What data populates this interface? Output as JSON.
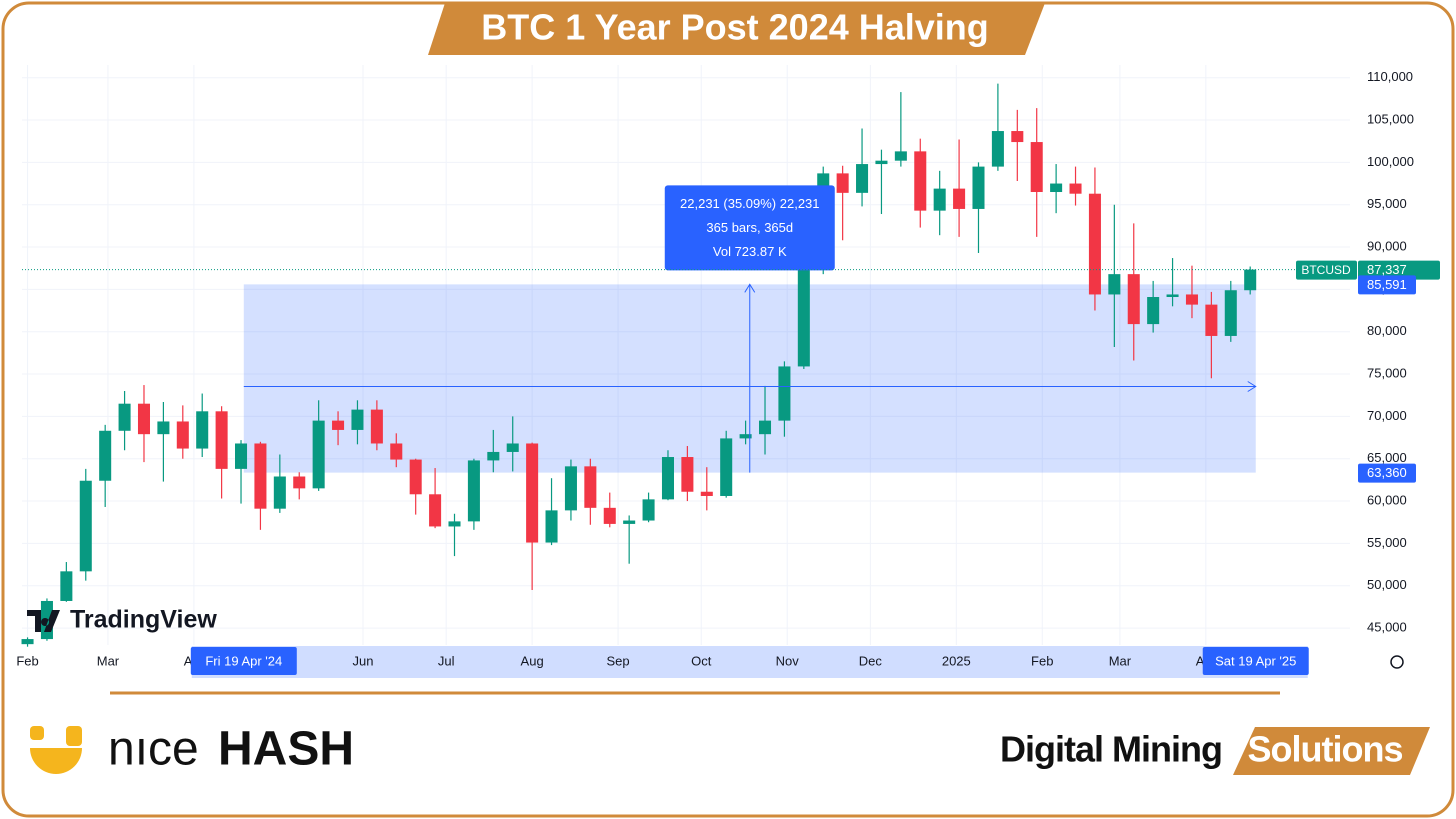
{
  "header": {
    "title": "BTC 1 Year Post 2024 Halving"
  },
  "chart_data": {
    "type": "candlestick",
    "x": [
      "2024-02-01",
      "2024-02-08",
      "2024-02-15",
      "2024-02-22",
      "2024-02-29",
      "2024-03-07",
      "2024-03-14",
      "2024-03-21",
      "2024-03-28",
      "2024-04-04",
      "2024-04-11",
      "2024-04-18",
      "2024-04-25",
      "2024-05-02",
      "2024-05-09",
      "2024-05-16",
      "2024-05-23",
      "2024-05-30",
      "2024-06-06",
      "2024-06-13",
      "2024-06-20",
      "2024-06-27",
      "2024-07-04",
      "2024-07-11",
      "2024-07-18",
      "2024-07-25",
      "2024-08-01",
      "2024-08-08",
      "2024-08-15",
      "2024-08-22",
      "2024-08-29",
      "2024-09-05",
      "2024-09-12",
      "2024-09-19",
      "2024-09-26",
      "2024-10-03",
      "2024-10-10",
      "2024-10-17",
      "2024-10-24",
      "2024-10-31",
      "2024-11-07",
      "2024-11-14",
      "2024-11-21",
      "2024-11-28",
      "2024-12-05",
      "2024-12-12",
      "2024-12-19",
      "2024-12-26",
      "2025-01-02",
      "2025-01-09",
      "2025-01-16",
      "2025-01-23",
      "2025-01-30",
      "2025-02-06",
      "2025-02-13",
      "2025-02-20",
      "2025-02-27",
      "2025-03-06",
      "2025-03-13",
      "2025-03-20",
      "2025-03-27",
      "2025-04-03",
      "2025-04-10",
      "2025-04-17"
    ],
    "open": [
      43100,
      43700,
      48200,
      51700,
      62400,
      68300,
      71500,
      67900,
      69400,
      66200,
      70600,
      63800,
      66800,
      59100,
      62900,
      61500,
      69500,
      68400,
      70800,
      66800,
      64900,
      60800,
      57000,
      57600,
      64800,
      65800,
      66800,
      55100,
      58900,
      64100,
      59200,
      57300,
      57700,
      60200,
      65200,
      61100,
      60600,
      67400,
      67900,
      69500,
      75900,
      87300,
      98700,
      96400,
      99800,
      100200,
      101300,
      94300,
      96900,
      94500,
      99500,
      103700,
      102400,
      96500,
      97500,
      96300,
      84400,
      86800,
      80900,
      84100,
      84400,
      83200,
      79500,
      84900
    ],
    "high": [
      43900,
      48500,
      52800,
      63800,
      69000,
      73000,
      73700,
      71700,
      71300,
      72700,
      71200,
      67200,
      67000,
      65500,
      63400,
      71900,
      70600,
      71900,
      71900,
      68000,
      65000,
      63900,
      58500,
      65000,
      68400,
      70000,
      66900,
      62700,
      64900,
      65000,
      61000,
      58300,
      61000,
      66000,
      66500,
      64000,
      68300,
      69500,
      73600,
      76500,
      89500,
      99500,
      99600,
      104000,
      101500,
      108300,
      102800,
      99000,
      102700,
      100000,
      109300,
      106200,
      106400,
      99800,
      99500,
      99400,
      95000,
      92800,
      86000,
      88700,
      87800,
      84700,
      86000,
      87700
    ],
    "low": [
      42800,
      43500,
      48100,
      50600,
      59300,
      66000,
      64600,
      62300,
      65000,
      65200,
      60300,
      59700,
      56600,
      58600,
      60200,
      61200,
      66600,
      66700,
      66000,
      64000,
      58400,
      56800,
      53500,
      56600,
      63400,
      63500,
      49500,
      54800,
      57700,
      57200,
      56900,
      52600,
      57500,
      60100,
      60000,
      58900,
      60400,
      66700,
      65500,
      67600,
      75600,
      86800,
      90800,
      94800,
      93900,
      99500,
      92300,
      91400,
      91200,
      89300,
      99000,
      97800,
      91200,
      94000,
      94900,
      82500,
      78200,
      76600,
      79900,
      83000,
      81600,
      74500,
      78800,
      84400
    ],
    "close": [
      43700,
      48200,
      51700,
      62400,
      68300,
      71500,
      67900,
      69400,
      66200,
      70600,
      63800,
      66800,
      59100,
      62900,
      61500,
      69500,
      68400,
      70800,
      66800,
      64900,
      60800,
      57000,
      57600,
      64800,
      65800,
      66800,
      55100,
      58900,
      64100,
      59200,
      57300,
      57700,
      60200,
      65200,
      61100,
      60600,
      67400,
      67900,
      69500,
      75900,
      87300,
      98700,
      96400,
      99800,
      100200,
      101300,
      94300,
      96900,
      94500,
      99500,
      103700,
      102400,
      96500,
      97500,
      96300,
      84400,
      86800,
      80900,
      84100,
      84400,
      83200,
      79500,
      84900,
      87337
    ],
    "up_color": "#089981",
    "down_color": "#f23645",
    "xlim": [
      "2024-01-30",
      "2025-05-23"
    ],
    "xticks": [
      {
        "value": "2024-02-01",
        "label": "Feb"
      },
      {
        "value": "2024-03-01",
        "label": "Mar"
      },
      {
        "value": "2024-04-01",
        "label": "Apr"
      },
      {
        "value": "2024-06-01",
        "label": "Jun"
      },
      {
        "value": "2024-07-01",
        "label": "Jul"
      },
      {
        "value": "2024-08-01",
        "label": "Aug"
      },
      {
        "value": "2024-09-01",
        "label": "Sep"
      },
      {
        "value": "2024-10-01",
        "label": "Oct"
      },
      {
        "value": "2024-11-01",
        "label": "Nov"
      },
      {
        "value": "2024-12-01",
        "label": "Dec"
      },
      {
        "value": "2025-01-01",
        "label": "2025"
      },
      {
        "value": "2025-02-01",
        "label": "Feb"
      },
      {
        "value": "2025-03-01",
        "label": "Mar"
      },
      {
        "value": "2025-04-01",
        "label": "Apr"
      }
    ],
    "ylim": [
      43000,
      111500
    ],
    "yticks": [
      {
        "value": 45000,
        "label": "45,000"
      },
      {
        "value": 50000,
        "label": "50,000"
      },
      {
        "value": 55000,
        "label": "55,000"
      },
      {
        "value": 60000,
        "label": "60,000"
      },
      {
        "value": 65000,
        "label": "65,000"
      },
      {
        "value": 70000,
        "label": "70,000"
      },
      {
        "value": 75000,
        "label": "75,000"
      },
      {
        "value": 80000,
        "label": "80,000"
      },
      {
        "value": 85000,
        "label": "85,000"
      },
      {
        "value": 90000,
        "label": "90,000"
      },
      {
        "value": 95000,
        "label": "95,000"
      },
      {
        "value": 100000,
        "label": "100,000"
      },
      {
        "value": 105000,
        "label": "105,000"
      },
      {
        "value": 110000,
        "label": "110,000"
      }
    ],
    "grid": true,
    "last_price": {
      "symbol": "BTCUSD",
      "value": 87337,
      "label": "87,337",
      "color": "#089981"
    },
    "measure": {
      "start": "2024-04-19",
      "end": "2025-04-19",
      "start_label": "Fri 19 Apr '24",
      "end_label": "Sat 19 Apr '25",
      "low": {
        "value": 63360,
        "label": "63,360"
      },
      "high": {
        "value": 85591,
        "label": "85,591"
      },
      "lines": [
        "22,231 (35.09%) 22,231",
        "365 bars, 365d",
        "Vol 723.87 K"
      ],
      "color": "#2962ff"
    }
  },
  "watermark": "TradingView",
  "footer": {
    "brand_light": "nıce",
    "brand_bold": "HASH",
    "tagline": "Digital Mining",
    "tagline_badge": "Solutions"
  }
}
